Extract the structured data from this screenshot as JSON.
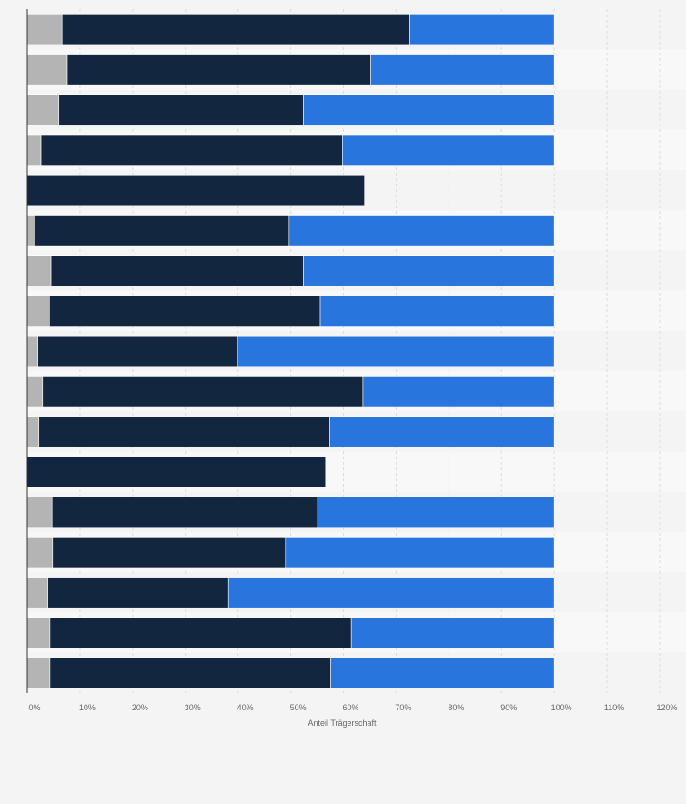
{
  "chart_data": {
    "type": "bar",
    "orientation": "horizontal",
    "stacked": true,
    "xlabel": "Anteil Trägerschaft",
    "xlim": [
      0,
      120
    ],
    "x_ticks": [
      "0%",
      "10%",
      "20%",
      "30%",
      "40%",
      "50%",
      "60%",
      "70%",
      "80%",
      "90%",
      "100%",
      "110%",
      "120%"
    ],
    "grid": "vertical-dashed",
    "legend": "none",
    "series": [
      {
        "color": "#b4b4b4",
        "values": [
          6.6,
          7.6,
          6.0,
          2.6,
          0,
          1.5,
          4.5,
          4.2,
          2.0,
          2.9,
          2.2,
          0,
          4.7,
          4.8,
          3.9,
          4.3,
          4.3
        ]
      },
      {
        "color": "#12263f",
        "values": [
          66.0,
          57.6,
          46.4,
          57.2,
          64.0,
          48.2,
          47.9,
          51.4,
          37.9,
          60.8,
          55.2,
          56.6,
          50.4,
          44.2,
          34.3,
          57.2,
          53.3
        ]
      },
      {
        "color": "#2876dd",
        "values": [
          27.4,
          34.8,
          47.6,
          40.2,
          0,
          50.3,
          47.6,
          44.4,
          60.1,
          36.3,
          42.6,
          0,
          44.9,
          51.0,
          61.8,
          38.5,
          42.4
        ]
      }
    ]
  }
}
